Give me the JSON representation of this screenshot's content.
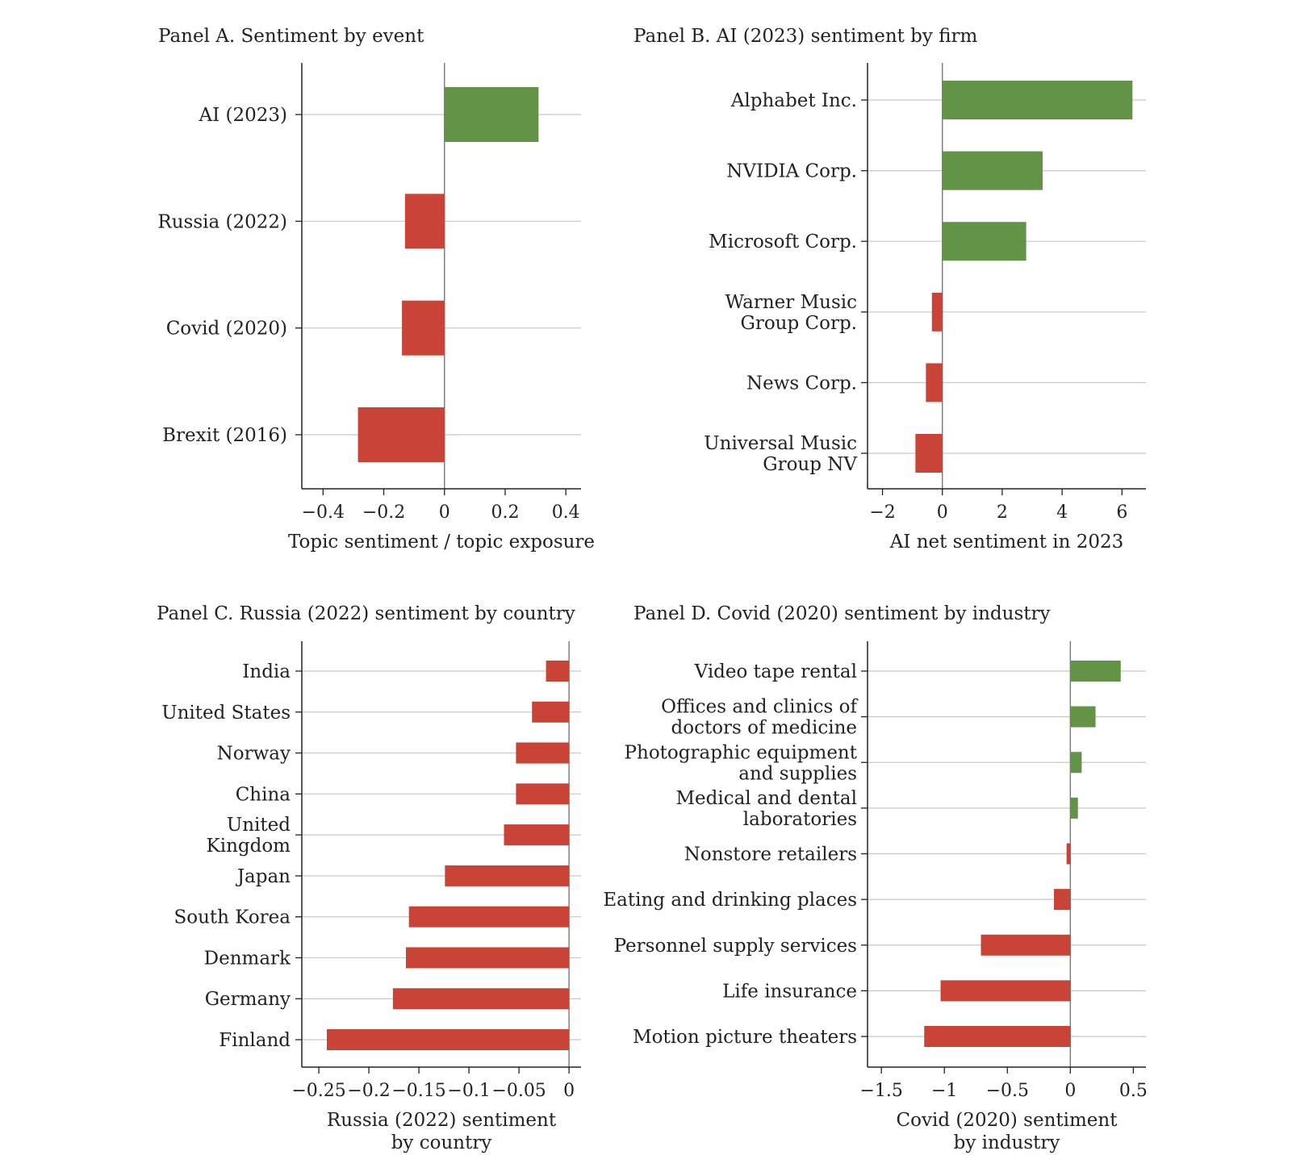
{
  "colors": {
    "positive": "#629346",
    "negative": "#c94337"
  },
  "chart_data": [
    {
      "id": "panel-a",
      "type": "bar",
      "orientation": "horizontal",
      "title": "Panel A. Sentiment by event",
      "xlabel": [
        "Topic sentiment / topic exposure"
      ],
      "categories": [
        [
          "AI (2023)"
        ],
        [
          "Russia (2022)"
        ],
        [
          "Covid (2020)"
        ],
        [
          "Brexit (2016)"
        ]
      ],
      "values": [
        0.31,
        -0.13,
        -0.14,
        -0.285
      ],
      "xlim": [
        -0.47,
        0.45
      ],
      "ticks": [
        -0.4,
        -0.2,
        0,
        0.2,
        0.4
      ],
      "tick_labels": [
        "−0.4",
        "−0.2",
        "0",
        "0.2",
        "0.4"
      ],
      "grid": true,
      "legend": "none"
    },
    {
      "id": "panel-b",
      "type": "bar",
      "orientation": "horizontal",
      "title": "Panel B. AI (2023) sentiment by firm",
      "xlabel": [
        "AI net sentiment in 2023"
      ],
      "categories": [
        [
          "Alphabet Inc."
        ],
        [
          "NVIDIA Corp."
        ],
        [
          "Microsoft Corp."
        ],
        [
          "Warner Music",
          "Group Corp."
        ],
        [
          "News Corp."
        ],
        [
          "Universal Music",
          "Group NV"
        ]
      ],
      "values": [
        6.35,
        3.35,
        2.8,
        -0.35,
        -0.55,
        -0.9
      ],
      "xlim": [
        -2.5,
        6.8
      ],
      "ticks": [
        -2,
        0,
        2,
        4,
        6
      ],
      "tick_labels": [
        "−2",
        "0",
        "2",
        "4",
        "6"
      ],
      "grid": true,
      "legend": "none"
    },
    {
      "id": "panel-c",
      "type": "bar",
      "orientation": "horizontal",
      "title": "Panel C. Russia (2022) sentiment by country",
      "xlabel": [
        "Russia (2022) sentiment",
        "by country"
      ],
      "categories": [
        [
          "India"
        ],
        [
          "United States"
        ],
        [
          "Norway"
        ],
        [
          "China"
        ],
        [
          "United",
          "Kingdom"
        ],
        [
          "Japan"
        ],
        [
          "South Korea"
        ],
        [
          "Denmark"
        ],
        [
          "Germany"
        ],
        [
          "Finland"
        ]
      ],
      "values": [
        -0.023,
        -0.037,
        -0.053,
        -0.053,
        -0.065,
        -0.124,
        -0.16,
        -0.163,
        -0.176,
        -0.242
      ],
      "xlim": [
        -0.267,
        0.012
      ],
      "ticks": [
        -0.25,
        -0.2,
        -0.15,
        -0.1,
        -0.05,
        0
      ],
      "tick_labels": [
        "−0.25",
        "−0.2",
        "−0.15",
        "−0.1",
        "−0.05",
        "0"
      ],
      "grid": true,
      "legend": "none"
    },
    {
      "id": "panel-d",
      "type": "bar",
      "orientation": "horizontal",
      "title": "Panel D. Covid (2020) sentiment by industry",
      "xlabel": [
        "Covid (2020) sentiment",
        "by industry"
      ],
      "categories": [
        [
          "Video tape rental"
        ],
        [
          "Offices and clinics of",
          "doctors of medicine"
        ],
        [
          "Photographic equipment",
          "and supplies"
        ],
        [
          "Medical and dental",
          "laboratories"
        ],
        [
          "Nonstore retailers"
        ],
        [
          "Eating and drinking places"
        ],
        [
          "Personnel supply services"
        ],
        [
          "Life insurance"
        ],
        [
          "Motion picture theaters"
        ]
      ],
      "values": [
        0.4,
        0.2,
        0.09,
        0.06,
        -0.03,
        -0.13,
        -0.71,
        -1.03,
        -1.16
      ],
      "xlim": [
        -1.61,
        0.6
      ],
      "ticks": [
        -1.5,
        -1,
        -0.5,
        0,
        0.5
      ],
      "tick_labels": [
        "−1.5",
        "−1",
        "−0.5",
        "0",
        "0.5"
      ],
      "grid": true,
      "legend": "none"
    }
  ]
}
